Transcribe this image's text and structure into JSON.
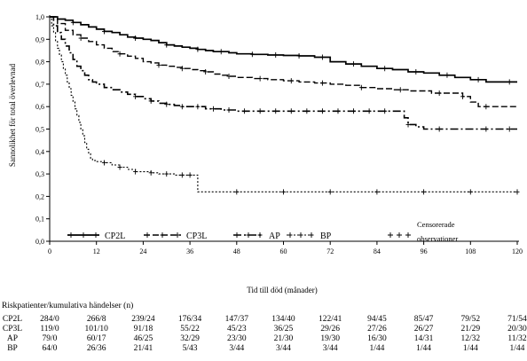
{
  "chart_data": {
    "type": "line",
    "subtype": "kaplan-meier",
    "xlabel": "Tid till död (månader)",
    "ylabel": "Sannolikhet för total överlevnad",
    "xlim": [
      0,
      120
    ],
    "ylim": [
      0,
      1
    ],
    "x_ticks": [
      0,
      12,
      24,
      36,
      48,
      60,
      72,
      84,
      96,
      108,
      120
    ],
    "y_ticks": [
      "0,0",
      "0,1",
      "0,2",
      "0,3",
      "0,4",
      "0,5",
      "0,6",
      "0,7",
      "0,8",
      "0,9",
      "1,0"
    ],
    "grid": false,
    "legend_position": "bottom-inside",
    "series": [
      {
        "name": "CP2L",
        "line_style": "solid",
        "points": [
          [
            0,
            1.0
          ],
          [
            2,
            0.99
          ],
          [
            4,
            0.985
          ],
          [
            6,
            0.975
          ],
          [
            8,
            0.965
          ],
          [
            10,
            0.955
          ],
          [
            12,
            0.945
          ],
          [
            14,
            0.935
          ],
          [
            16,
            0.93
          ],
          [
            18,
            0.92
          ],
          [
            20,
            0.91
          ],
          [
            22,
            0.905
          ],
          [
            24,
            0.9
          ],
          [
            26,
            0.895
          ],
          [
            28,
            0.885
          ],
          [
            30,
            0.875
          ],
          [
            32,
            0.87
          ],
          [
            34,
            0.865
          ],
          [
            36,
            0.86
          ],
          [
            38,
            0.855
          ],
          [
            40,
            0.85
          ],
          [
            42,
            0.845
          ],
          [
            44,
            0.845
          ],
          [
            46,
            0.84
          ],
          [
            48,
            0.835
          ],
          [
            52,
            0.833
          ],
          [
            56,
            0.83
          ],
          [
            60,
            0.828
          ],
          [
            64,
            0.826
          ],
          [
            68,
            0.82
          ],
          [
            72,
            0.8
          ],
          [
            76,
            0.79
          ],
          [
            80,
            0.78
          ],
          [
            84,
            0.77
          ],
          [
            88,
            0.765
          ],
          [
            92,
            0.755
          ],
          [
            96,
            0.75
          ],
          [
            100,
            0.74
          ],
          [
            104,
            0.73
          ],
          [
            108,
            0.72
          ],
          [
            112,
            0.71
          ],
          [
            116,
            0.71
          ],
          [
            120,
            0.71
          ]
        ],
        "censored": [
          6,
          14,
          22,
          30,
          38,
          44,
          52,
          58,
          64,
          70,
          78,
          86,
          94,
          102,
          110,
          118
        ]
      },
      {
        "name": "CP3L",
        "line_style": "dashed",
        "points": [
          [
            0,
            1.0
          ],
          [
            2,
            0.97
          ],
          [
            4,
            0.94
          ],
          [
            6,
            0.92
          ],
          [
            8,
            0.905
          ],
          [
            10,
            0.89
          ],
          [
            12,
            0.875
          ],
          [
            14,
            0.86
          ],
          [
            16,
            0.845
          ],
          [
            18,
            0.835
          ],
          [
            20,
            0.825
          ],
          [
            22,
            0.815
          ],
          [
            24,
            0.8
          ],
          [
            26,
            0.795
          ],
          [
            28,
            0.785
          ],
          [
            30,
            0.78
          ],
          [
            32,
            0.775
          ],
          [
            34,
            0.77
          ],
          [
            36,
            0.765
          ],
          [
            38,
            0.76
          ],
          [
            40,
            0.755
          ],
          [
            42,
            0.745
          ],
          [
            44,
            0.74
          ],
          [
            46,
            0.735
          ],
          [
            48,
            0.73
          ],
          [
            52,
            0.725
          ],
          [
            56,
            0.72
          ],
          [
            60,
            0.715
          ],
          [
            64,
            0.71
          ],
          [
            68,
            0.705
          ],
          [
            72,
            0.7
          ],
          [
            76,
            0.695
          ],
          [
            80,
            0.685
          ],
          [
            84,
            0.68
          ],
          [
            88,
            0.675
          ],
          [
            92,
            0.67
          ],
          [
            96,
            0.67
          ],
          [
            98,
            0.66
          ],
          [
            102,
            0.66
          ],
          [
            106,
            0.645
          ],
          [
            108,
            0.62
          ],
          [
            110,
            0.6
          ],
          [
            120,
            0.6
          ]
        ],
        "censored": [
          8,
          18,
          28,
          34,
          40,
          46,
          54,
          62,
          70,
          80,
          90,
          100,
          106,
          112
        ]
      },
      {
        "name": "AP",
        "line_style": "dash-dot",
        "points": [
          [
            0,
            1.0
          ],
          [
            1,
            0.96
          ],
          [
            2,
            0.93
          ],
          [
            3,
            0.9
          ],
          [
            4,
            0.87
          ],
          [
            5,
            0.84
          ],
          [
            6,
            0.81
          ],
          [
            7,
            0.78
          ],
          [
            8,
            0.76
          ],
          [
            9,
            0.74
          ],
          [
            10,
            0.72
          ],
          [
            11,
            0.71
          ],
          [
            12,
            0.7
          ],
          [
            14,
            0.685
          ],
          [
            16,
            0.675
          ],
          [
            18,
            0.665
          ],
          [
            20,
            0.655
          ],
          [
            22,
            0.645
          ],
          [
            24,
            0.635
          ],
          [
            26,
            0.625
          ],
          [
            28,
            0.615
          ],
          [
            30,
            0.61
          ],
          [
            32,
            0.605
          ],
          [
            34,
            0.6
          ],
          [
            36,
            0.6
          ],
          [
            40,
            0.59
          ],
          [
            44,
            0.585
          ],
          [
            48,
            0.58
          ],
          [
            60,
            0.58
          ],
          [
            72,
            0.58
          ],
          [
            80,
            0.58
          ],
          [
            84,
            0.58
          ],
          [
            90,
            0.58
          ],
          [
            91,
            0.55
          ],
          [
            92,
            0.52
          ],
          [
            94,
            0.51
          ],
          [
            96,
            0.5
          ],
          [
            120,
            0.5
          ]
        ],
        "censored": [
          22,
          26,
          30,
          34,
          38,
          42,
          46,
          50,
          54,
          58,
          62,
          66,
          70,
          74,
          78,
          82,
          86,
          92,
          100,
          112,
          118
        ]
      },
      {
        "name": "BP",
        "line_style": "dotted",
        "points": [
          [
            0,
            1.0
          ],
          [
            0.5,
            0.96
          ],
          [
            1,
            0.93
          ],
          [
            1.5,
            0.89
          ],
          [
            2,
            0.86
          ],
          [
            2.5,
            0.83
          ],
          [
            3,
            0.8
          ],
          [
            3.5,
            0.77
          ],
          [
            4,
            0.74
          ],
          [
            4.5,
            0.71
          ],
          [
            5,
            0.68
          ],
          [
            5.5,
            0.65
          ],
          [
            6,
            0.62
          ],
          [
            6.5,
            0.59
          ],
          [
            7,
            0.56
          ],
          [
            7.5,
            0.53
          ],
          [
            8,
            0.5
          ],
          [
            8.5,
            0.47
          ],
          [
            9,
            0.44
          ],
          [
            9.5,
            0.41
          ],
          [
            10,
            0.39
          ],
          [
            10.5,
            0.37
          ],
          [
            11,
            0.36
          ],
          [
            12,
            0.355
          ],
          [
            14,
            0.35
          ],
          [
            16,
            0.34
          ],
          [
            18,
            0.33
          ],
          [
            20,
            0.32
          ],
          [
            22,
            0.31
          ],
          [
            24,
            0.31
          ],
          [
            26,
            0.305
          ],
          [
            28,
            0.3
          ],
          [
            30,
            0.3
          ],
          [
            32,
            0.295
          ],
          [
            36,
            0.295
          ],
          [
            37,
            0.295
          ],
          [
            38,
            0.22
          ],
          [
            120,
            0.22
          ]
        ],
        "censored": [
          14,
          18,
          22,
          26,
          30,
          34,
          36,
          48,
          60,
          72,
          84,
          96,
          108,
          120
        ]
      }
    ],
    "legend": {
      "items": [
        {
          "label": "CP2L",
          "line_style": "solid"
        },
        {
          "label": "CP3L",
          "line_style": "dashed"
        },
        {
          "label": "AP",
          "line_style": "dash-dot"
        },
        {
          "label": "BP",
          "line_style": "dotted"
        }
      ],
      "censored_label_1": "Censorerade",
      "censored_label_2": "observationer"
    },
    "risk_table": {
      "title": "Riskpatienter/kumulativa händelser (n)",
      "rows": [
        {
          "name": "CP2L",
          "values": [
            "284/0",
            "266/8",
            "239/24",
            "176/34",
            "147/37",
            "134/40",
            "122/41",
            "94/45",
            "85/47",
            "79/52",
            "71/54"
          ]
        },
        {
          "name": "CP3L",
          "values": [
            "119/0",
            "101/10",
            "91/18",
            "55/22",
            "45/23",
            "36/25",
            "29/26",
            "27/26",
            "26/27",
            "21/29",
            "20/30"
          ]
        },
        {
          "name": "AP",
          "values": [
            "79/0",
            "60/17",
            "46/25",
            "32/29",
            "23/30",
            "21/30",
            "19/30",
            "16/30",
            "14/31",
            "12/32",
            "11/32"
          ]
        },
        {
          "name": "BP",
          "values": [
            "64/0",
            "26/36",
            "21/41",
            "5/43",
            "3/44",
            "3/44",
            "3/44",
            "1/44",
            "1/44",
            "1/44",
            "1/44"
          ]
        }
      ]
    }
  }
}
